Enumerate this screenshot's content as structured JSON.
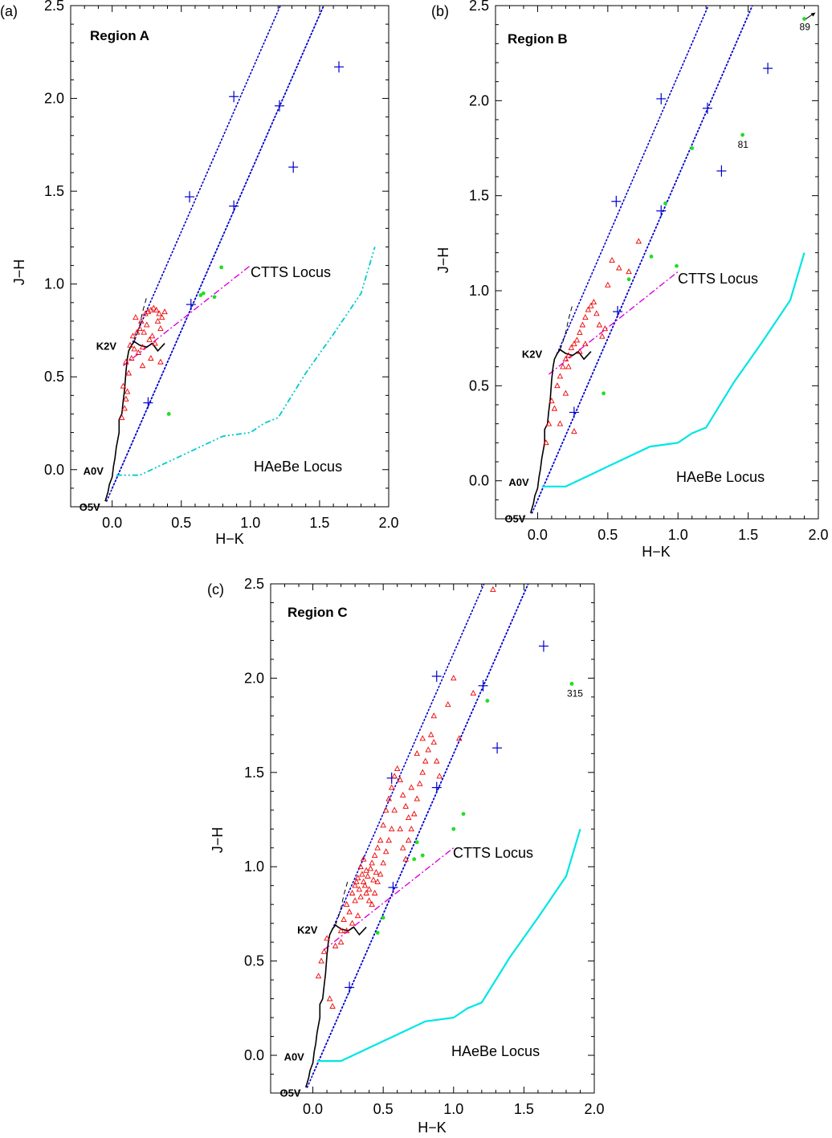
{
  "colors": {
    "main_sequence": "#000000",
    "reddening": "#0000cc",
    "ctts": "#dd00dd",
    "haebe_dashed": "#00cccc",
    "haebe_solid": "#00e5e5",
    "triangle": "#ee0000",
    "dot": "#22dd22",
    "frame": "#000000"
  },
  "chart_data": [
    {
      "id": "a",
      "type": "scatter",
      "panel_label": "(a)",
      "title": "Region A",
      "xlabel": "H−K",
      "ylabel": "J−H",
      "xlim": [
        -0.3,
        2.0
      ],
      "ylim": [
        -0.2,
        2.5
      ],
      "xticks": [
        "0.0",
        "0.5",
        "1.0",
        "1.5",
        "2.0"
      ],
      "yticks": [
        "0.0",
        "0.5",
        "1.0",
        "1.5",
        "2.0",
        "2.5"
      ],
      "spt_labels": [
        {
          "text": "O5V",
          "x": -0.04,
          "y": -0.16
        },
        {
          "text": "A0V",
          "x": 0.0,
          "y": -0.01
        },
        {
          "text": "K2V",
          "x": 0.14,
          "y": 0.68
        }
      ],
      "locus_labels": {
        "ctts": "CTTS Locus",
        "haebe": "HAeBe Locus"
      },
      "haebe_style": "dashdot",
      "triangles": [
        [
          0.07,
          0.28
        ],
        [
          0.09,
          0.33
        ],
        [
          0.1,
          0.38
        ],
        [
          0.11,
          0.42
        ],
        [
          0.08,
          0.45
        ],
        [
          0.12,
          0.52
        ],
        [
          0.1,
          0.58
        ],
        [
          0.14,
          0.6
        ],
        [
          0.16,
          0.65
        ],
        [
          0.13,
          0.67
        ],
        [
          0.19,
          0.63
        ],
        [
          0.22,
          0.66
        ],
        [
          0.15,
          0.72
        ],
        [
          0.18,
          0.74
        ],
        [
          0.2,
          0.76
        ],
        [
          0.23,
          0.74
        ],
        [
          0.25,
          0.78
        ],
        [
          0.21,
          0.8
        ],
        [
          0.17,
          0.82
        ],
        [
          0.24,
          0.84
        ],
        [
          0.26,
          0.85
        ],
        [
          0.28,
          0.86
        ],
        [
          0.3,
          0.87
        ],
        [
          0.32,
          0.86
        ],
        [
          0.34,
          0.84
        ],
        [
          0.36,
          0.82
        ],
        [
          0.33,
          0.8
        ],
        [
          0.35,
          0.76
        ],
        [
          0.29,
          0.72
        ],
        [
          0.31,
          0.68
        ],
        [
          0.27,
          0.7
        ],
        [
          0.38,
          0.85
        ],
        [
          0.28,
          0.6
        ],
        [
          0.35,
          0.58
        ],
        [
          0.22,
          0.56
        ]
      ],
      "dots": [
        [
          0.41,
          0.3
        ],
        [
          0.64,
          0.94
        ],
        [
          0.66,
          0.95
        ],
        [
          0.74,
          0.93
        ],
        [
          0.79,
          1.09
        ]
      ],
      "annotations": []
    },
    {
      "id": "b",
      "type": "scatter",
      "panel_label": "(b)",
      "title": "Region B",
      "xlabel": "H−K",
      "ylabel": "J−H",
      "xlim": [
        -0.3,
        2.0
      ],
      "ylim": [
        -0.2,
        2.5
      ],
      "xticks": [
        "0.0",
        "0.5",
        "1.0",
        "1.5",
        "2.0"
      ],
      "yticks": [
        "0.0",
        "0.5",
        "1.0",
        "1.5",
        "2.0",
        "2.5"
      ],
      "spt_labels": [
        {
          "text": "O5V",
          "x": -0.04,
          "y": -0.16
        },
        {
          "text": "A0V",
          "x": 0.0,
          "y": -0.01
        },
        {
          "text": "K2V",
          "x": 0.14,
          "y": 0.68
        }
      ],
      "locus_labels": {
        "ctts": "CTTS Locus",
        "haebe": "HAeBe Locus"
      },
      "haebe_style": "solid",
      "triangles": [
        [
          0.06,
          0.2
        ],
        [
          0.08,
          0.3
        ],
        [
          0.1,
          0.42
        ],
        [
          0.12,
          0.38
        ],
        [
          0.14,
          0.5
        ],
        [
          0.16,
          0.55
        ],
        [
          0.18,
          0.6
        ],
        [
          0.2,
          0.64
        ],
        [
          0.22,
          0.66
        ],
        [
          0.24,
          0.7
        ],
        [
          0.26,
          0.72
        ],
        [
          0.28,
          0.74
        ],
        [
          0.3,
          0.78
        ],
        [
          0.32,
          0.82
        ],
        [
          0.34,
          0.86
        ],
        [
          0.36,
          0.9
        ],
        [
          0.38,
          0.92
        ],
        [
          0.4,
          0.94
        ],
        [
          0.42,
          0.88
        ],
        [
          0.44,
          0.82
        ],
        [
          0.46,
          0.76
        ],
        [
          0.48,
          0.8
        ],
        [
          0.3,
          0.68
        ],
        [
          0.34,
          0.72
        ],
        [
          0.2,
          0.46
        ],
        [
          0.16,
          0.3
        ],
        [
          0.26,
          0.26
        ],
        [
          0.22,
          0.6
        ],
        [
          0.5,
          1.03
        ],
        [
          0.53,
          1.16
        ],
        [
          0.58,
          1.12
        ],
        [
          0.72,
          1.26
        ],
        [
          0.65,
          1.1
        ]
      ],
      "dots": [
        [
          0.47,
          0.46
        ],
        [
          0.65,
          1.06
        ],
        [
          0.81,
          1.18
        ],
        [
          0.91,
          1.46
        ],
        [
          0.99,
          1.13
        ],
        [
          1.1,
          1.75
        ],
        [
          1.46,
          1.82
        ],
        [
          1.9,
          2.43
        ]
      ],
      "annotations": [
        {
          "text": "81",
          "x": 1.46,
          "y": 1.82
        },
        {
          "text": "89",
          "x": 1.9,
          "y": 2.43
        }
      ]
    },
    {
      "id": "c",
      "type": "scatter",
      "panel_label": "(c)",
      "title": "Region C",
      "xlabel": "H−K",
      "ylabel": "J−H",
      "xlim": [
        -0.3,
        2.0
      ],
      "ylim": [
        -0.2,
        2.5
      ],
      "xticks": [
        "0.0",
        "0.5",
        "1.0",
        "1.5",
        "2.0"
      ],
      "yticks": [
        "0.0",
        "0.5",
        "1.0",
        "1.5",
        "2.0",
        "2.5"
      ],
      "spt_labels": [
        {
          "text": "O5V",
          "x": -0.04,
          "y": -0.16
        },
        {
          "text": "A0V",
          "x": 0.0,
          "y": -0.01
        },
        {
          "text": "K2V",
          "x": 0.14,
          "y": 0.68
        }
      ],
      "locus_labels": {
        "ctts": "CTTS Locus",
        "haebe": "HAeBe Locus"
      },
      "haebe_style": "solid",
      "triangles": [
        [
          0.04,
          0.42
        ],
        [
          0.06,
          0.5
        ],
        [
          0.08,
          0.55
        ],
        [
          0.1,
          0.62
        ],
        [
          0.12,
          0.3
        ],
        [
          0.14,
          0.26
        ],
        [
          0.16,
          0.58
        ],
        [
          0.2,
          0.66
        ],
        [
          0.22,
          0.72
        ],
        [
          0.24,
          0.8
        ],
        [
          0.26,
          0.76
        ],
        [
          0.28,
          0.86
        ],
        [
          0.3,
          0.9
        ],
        [
          0.32,
          0.94
        ],
        [
          0.34,
          0.84
        ],
        [
          0.36,
          0.92
        ],
        [
          0.38,
          0.98
        ],
        [
          0.4,
          0.88
        ],
        [
          0.42,
          1.02
        ],
        [
          0.44,
          1.06
        ],
        [
          0.46,
          1.1
        ],
        [
          0.48,
          1.14
        ],
        [
          0.3,
          0.82
        ],
        [
          0.33,
          0.88
        ],
        [
          0.35,
          0.96
        ],
        [
          0.37,
          0.9
        ],
        [
          0.39,
          0.95
        ],
        [
          0.41,
          0.99
        ],
        [
          0.43,
          0.93
        ],
        [
          0.45,
          0.97
        ],
        [
          0.31,
          0.92
        ],
        [
          0.34,
          1.0
        ],
        [
          0.36,
          1.04
        ],
        [
          0.38,
          0.86
        ],
        [
          0.4,
          0.82
        ],
        [
          0.42,
          0.8
        ],
        [
          0.44,
          0.86
        ],
        [
          0.46,
          0.92
        ],
        [
          0.48,
          0.96
        ],
        [
          0.5,
          1.02
        ],
        [
          0.52,
          1.08
        ],
        [
          0.54,
          1.14
        ],
        [
          0.56,
          1.2
        ],
        [
          0.5,
          1.22
        ],
        [
          0.52,
          1.3
        ],
        [
          0.54,
          1.36
        ],
        [
          0.56,
          1.42
        ],
        [
          0.58,
          1.48
        ],
        [
          0.6,
          1.52
        ],
        [
          0.62,
          1.46
        ],
        [
          0.64,
          1.38
        ],
        [
          0.66,
          1.32
        ],
        [
          0.68,
          1.26
        ],
        [
          0.7,
          1.2
        ],
        [
          0.72,
          1.28
        ],
        [
          0.74,
          1.36
        ],
        [
          0.76,
          1.44
        ],
        [
          0.78,
          1.5
        ],
        [
          0.8,
          1.56
        ],
        [
          0.82,
          1.62
        ],
        [
          0.84,
          1.7
        ],
        [
          0.86,
          1.66
        ],
        [
          0.88,
          1.56
        ],
        [
          0.9,
          1.48
        ],
        [
          0.62,
          1.2
        ],
        [
          0.64,
          1.1
        ],
        [
          0.66,
          1.04
        ],
        [
          0.68,
          1.14
        ],
        [
          0.58,
          1.3
        ],
        [
          0.7,
          1.42
        ],
        [
          0.74,
          1.6
        ],
        [
          0.78,
          1.68
        ],
        [
          0.86,
          1.8
        ],
        [
          0.96,
          1.86
        ],
        [
          1.0,
          2.0
        ],
        [
          1.04,
          1.68
        ],
        [
          1.14,
          1.92
        ],
        [
          1.28,
          2.47
        ],
        [
          0.2,
          0.6
        ],
        [
          0.24,
          0.66
        ],
        [
          0.28,
          0.7
        ],
        [
          0.32,
          0.74
        ]
      ],
      "dots": [
        [
          0.46,
          0.65
        ],
        [
          0.5,
          0.73
        ],
        [
          0.72,
          1.04
        ],
        [
          0.74,
          1.13
        ],
        [
          0.78,
          1.06
        ],
        [
          1.0,
          1.2
        ],
        [
          1.07,
          1.28
        ],
        [
          1.24,
          1.88
        ],
        [
          1.84,
          1.97
        ]
      ],
      "annotations": [
        {
          "text": "315",
          "x": 1.84,
          "y": 1.97
        }
      ]
    }
  ]
}
